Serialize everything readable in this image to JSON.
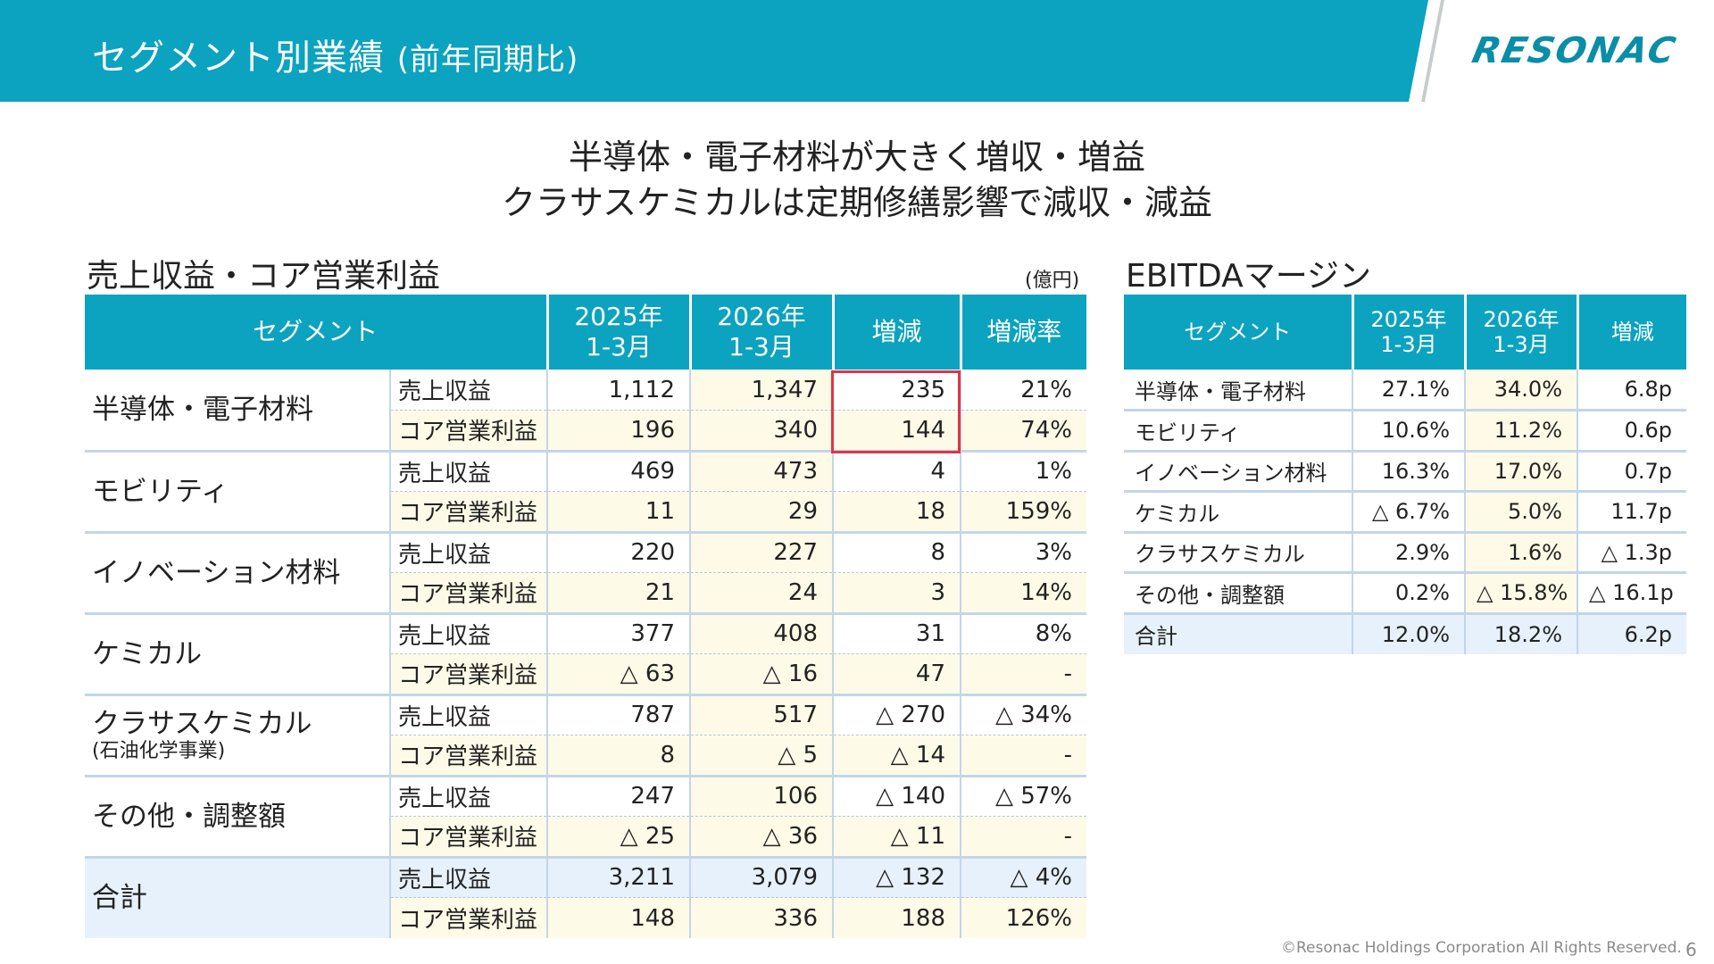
{
  "header": {
    "title": "セグメント別業績",
    "subtitle": "(前年同期比)",
    "logo_text": "RESONAC",
    "band_color": "#0ba3bf"
  },
  "headline": {
    "line1": "半導体・電子材料が大きく増収・増益",
    "line2": "クラサスケミカルは定期修繕影響で減収・減益"
  },
  "main_table": {
    "title": "売上収益・コア営業利益",
    "unit": "(億円)",
    "headers": [
      "セグメント",
      "2025年\n1-3月",
      "2026年\n1-3月",
      "増減",
      "増減率"
    ],
    "header_lines": [
      [
        "セグメント"
      ],
      [
        "2025年",
        "1-3月"
      ],
      [
        "2026年",
        "1-3月"
      ],
      [
        "増減"
      ],
      [
        "増減率"
      ]
    ],
    "segments": [
      {
        "name": "半導体・電子材料",
        "note": "",
        "rows": [
          {
            "metric": "売上収益",
            "y2025": "1,112",
            "y2026": "1,347",
            "diff": "235",
            "rate": "21%"
          },
          {
            "metric": "コア営業利益",
            "y2025": "196",
            "y2026": "340",
            "diff": "144",
            "rate": "74%"
          }
        ]
      },
      {
        "name": "モビリティ",
        "note": "",
        "rows": [
          {
            "metric": "売上収益",
            "y2025": "469",
            "y2026": "473",
            "diff": "4",
            "rate": "1%"
          },
          {
            "metric": "コア営業利益",
            "y2025": "11",
            "y2026": "29",
            "diff": "18",
            "rate": "159%"
          }
        ]
      },
      {
        "name": "イノベーション材料",
        "note": "",
        "rows": [
          {
            "metric": "売上収益",
            "y2025": "220",
            "y2026": "227",
            "diff": "8",
            "rate": "3%"
          },
          {
            "metric": "コア営業利益",
            "y2025": "21",
            "y2026": "24",
            "diff": "3",
            "rate": "14%"
          }
        ]
      },
      {
        "name": "ケミカル",
        "note": "",
        "rows": [
          {
            "metric": "売上収益",
            "y2025": "377",
            "y2026": "408",
            "diff": "31",
            "rate": "8%"
          },
          {
            "metric": "コア営業利益",
            "y2025": "△ 63",
            "y2026": "△ 16",
            "diff": "47",
            "rate": "-"
          }
        ]
      },
      {
        "name": "クラサスケミカル",
        "note": "(石油化学事業)",
        "rows": [
          {
            "metric": "売上収益",
            "y2025": "787",
            "y2026": "517",
            "diff": "△ 270",
            "rate": "△ 34%"
          },
          {
            "metric": "コア営業利益",
            "y2025": "8",
            "y2026": "△ 5",
            "diff": "△ 14",
            "rate": "-"
          }
        ]
      },
      {
        "name": "その他・調整額",
        "note": "",
        "rows": [
          {
            "metric": "売上収益",
            "y2025": "247",
            "y2026": "106",
            "diff": "△ 140",
            "rate": "△ 57%"
          },
          {
            "metric": "コア営業利益",
            "y2025": "△ 25",
            "y2026": "△ 36",
            "diff": "△ 11",
            "rate": "-"
          }
        ]
      },
      {
        "name": "合計",
        "note": "",
        "rows": [
          {
            "metric": "売上収益",
            "y2025": "3,211",
            "y2026": "3,079",
            "diff": "△ 132",
            "rate": "△ 4%"
          },
          {
            "metric": "コア営業利益",
            "y2025": "148",
            "y2026": "336",
            "diff": "188",
            "rate": "126%"
          }
        ]
      }
    ]
  },
  "ebitda_table": {
    "title": "EBITDAマージン",
    "header_lines": [
      [
        "セグメント"
      ],
      [
        "2025年",
        "1-3月"
      ],
      [
        "2026年",
        "1-3月"
      ],
      [
        "増減"
      ]
    ],
    "rows": [
      {
        "segment": "半導体・電子材料",
        "y2025": "27.1%",
        "y2026": "34.0%",
        "diff": "6.8p"
      },
      {
        "segment": "モビリティ",
        "y2025": "10.6%",
        "y2026": "11.2%",
        "diff": "0.6p"
      },
      {
        "segment": "イノベーション材料",
        "y2025": "16.3%",
        "y2026": "17.0%",
        "diff": "0.7p"
      },
      {
        "segment": "ケミカル",
        "y2025": "△ 6.7%",
        "y2026": "5.0%",
        "diff": "11.7p"
      },
      {
        "segment": "クラサスケミカル",
        "y2025": "2.9%",
        "y2026": "1.6%",
        "diff": "△ 1.3p"
      },
      {
        "segment": "その他・調整額",
        "y2025": "0.2%",
        "y2026": "△ 15.8%",
        "diff": "△ 16.1p"
      },
      {
        "segment": "合計",
        "y2025": "12.0%",
        "y2026": "18.2%",
        "diff": "6.2p"
      }
    ]
  },
  "footer": {
    "copyright": "©Resonac Holdings Corporation  All Rights Reserved.",
    "page": "6"
  }
}
